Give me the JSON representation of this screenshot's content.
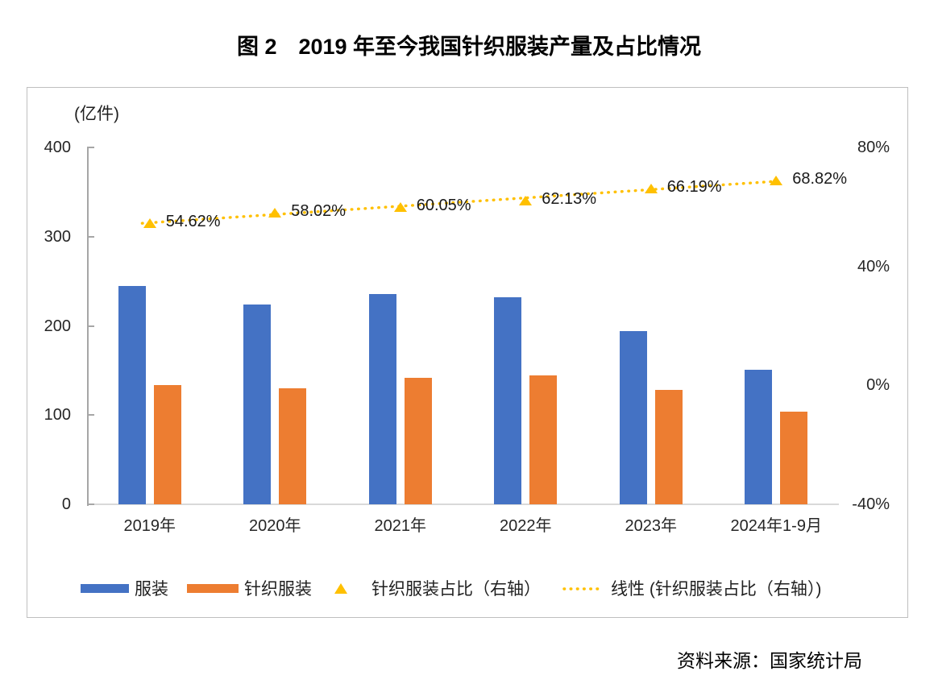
{
  "page": {
    "title": "图 2　2019 年至今我国针织服装产量及占比情况",
    "source": "资料来源：国家统计局"
  },
  "chart_data": {
    "type": "bar",
    "title": "图 2　2019 年至今我国针织服装产量及占比情况",
    "categories": [
      "2019年",
      "2020年",
      "2021年",
      "2022年",
      "2023年",
      "2024年1-9月"
    ],
    "series": [
      {
        "name": "服装",
        "type": "bar",
        "axis": "left",
        "color": "#4472C4",
        "values": [
          244.7,
          223.7,
          235.4,
          232.3,
          193.9,
          150.8
        ]
      },
      {
        "name": "针织服装",
        "type": "bar",
        "axis": "left",
        "color": "#ED7D31",
        "values": [
          133.7,
          129.8,
          141.4,
          144.3,
          128.4,
          103.8
        ]
      },
      {
        "name": "针织服装占比（右轴）",
        "type": "scatter",
        "marker": "triangle",
        "axis": "right",
        "color": "#FFC000",
        "values": [
          54.62,
          58.02,
          60.05,
          62.13,
          66.19,
          68.82
        ],
        "labels": [
          "54.62%",
          "58.02%",
          "60.05%",
          "62.13%",
          "66.19%",
          "68.82%"
        ]
      },
      {
        "name": "线性 (针织服装占比（右轴）)",
        "type": "trendline",
        "style": "dotted",
        "axis": "right",
        "color": "#FFC000"
      }
    ],
    "left_axis": {
      "unit": "(亿件)",
      "min": 0,
      "max": 400,
      "ticks": [
        400,
        300,
        200,
        100,
        0
      ]
    },
    "right_axis": {
      "min": -40,
      "max": 80,
      "ticks": [
        "80%",
        "40%",
        "0%",
        "-40%"
      ],
      "tick_values": [
        80,
        40,
        0,
        -40
      ]
    },
    "legend_position": "bottom",
    "grid": false
  }
}
